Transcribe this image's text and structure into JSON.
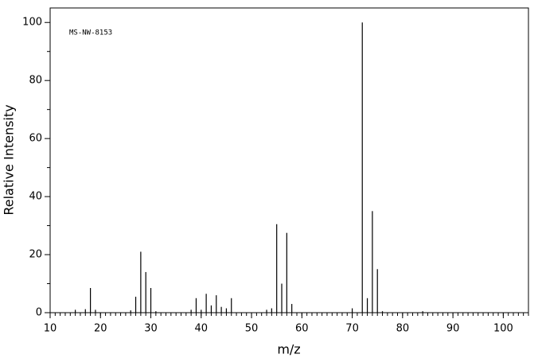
{
  "chart_data": {
    "type": "bar",
    "annotation": "MS-NW-8153",
    "xlabel": "m/z",
    "ylabel": "Relative Intensity",
    "x": [
      15,
      17,
      18,
      19,
      26,
      27,
      28,
      29,
      30,
      31,
      38,
      39,
      40,
      41,
      42,
      43,
      44,
      45,
      46,
      53,
      54,
      55,
      56,
      57,
      58,
      70,
      72,
      73,
      74,
      75,
      76,
      84
    ],
    "values": [
      1,
      1.2,
      8.5,
      1,
      0.8,
      5.5,
      21,
      14,
      8.5,
      0.5,
      1,
      5,
      1,
      6.5,
      2.5,
      6,
      2,
      1.5,
      5,
      1,
      1.5,
      30.5,
      10,
      27.5,
      3,
      1.5,
      100,
      5,
      35,
      15,
      0.5,
      0.5
    ],
    "color": "#000000",
    "xlim": [
      10,
      105
    ],
    "xticks": [
      10,
      20,
      30,
      40,
      50,
      60,
      70,
      80,
      90,
      100
    ],
    "ylim": [
      0,
      105
    ],
    "yticks": [
      0,
      20,
      40,
      60,
      80,
      100
    ]
  }
}
